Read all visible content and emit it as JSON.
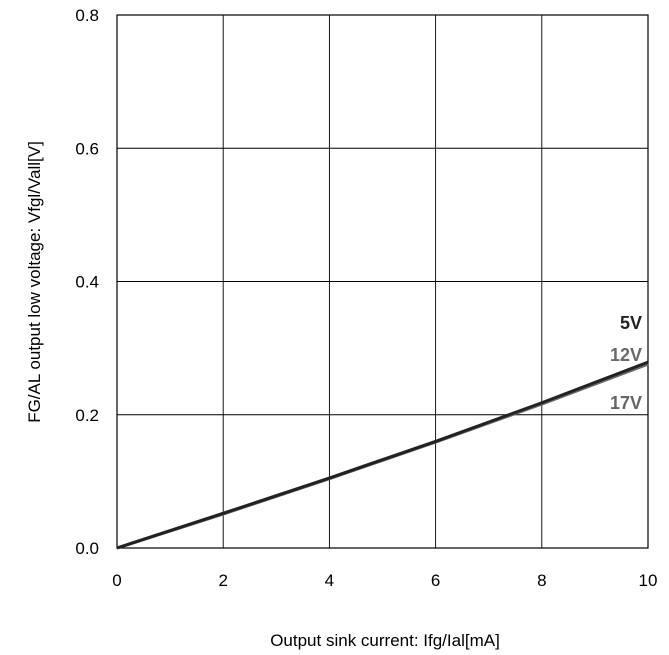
{
  "chart_data": {
    "type": "line",
    "title": "",
    "xlabel": "Output sink current: Ifg/Ial[mA]",
    "ylabel": "FG/AL output low voltage: Vfgl/Vall[V]",
    "xlim": [
      0,
      10
    ],
    "ylim": [
      0,
      0.8
    ],
    "x_ticks": [
      "0",
      "2",
      "4",
      "6",
      "8",
      "10"
    ],
    "y_ticks": [
      "0.0",
      "0.2",
      "0.4",
      "0.6",
      "0.8"
    ],
    "grid": true,
    "series": [
      {
        "name": "5V",
        "color": "#222222",
        "x": [
          0,
          2,
          4,
          6,
          8,
          10
        ],
        "y": [
          0,
          0.052,
          0.105,
          0.16,
          0.218,
          0.279
        ]
      },
      {
        "name": "12V",
        "color": "#6a6a6a",
        "x": [
          0,
          2,
          4,
          6,
          8,
          10
        ],
        "y": [
          0,
          0.052,
          0.105,
          0.16,
          0.217,
          0.277
        ]
      },
      {
        "name": "17V",
        "color": "#666666",
        "x": [
          0,
          2,
          4,
          6,
          8,
          10
        ],
        "y": [
          0,
          0.051,
          0.104,
          0.159,
          0.216,
          0.276
        ]
      }
    ]
  }
}
